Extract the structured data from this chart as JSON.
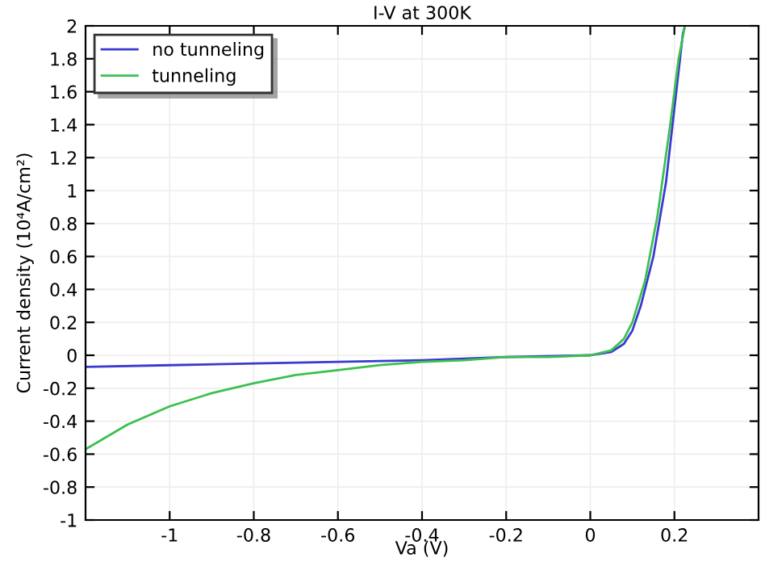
{
  "chart_data": {
    "type": "line",
    "title": "I-V at 300K",
    "xlabel": "Va (V)",
    "ylabel": "Current density (10⁴A/cm²)",
    "xlim": [
      -1.2,
      0.4
    ],
    "ylim": [
      -1,
      2
    ],
    "xticks": [
      -1,
      -0.8,
      -0.6,
      -0.4,
      -0.2,
      0,
      0.2
    ],
    "yticks": [
      -1,
      -0.8,
      -0.6,
      -0.4,
      -0.2,
      0,
      0.2,
      0.4,
      0.6,
      0.8,
      1,
      1.2,
      1.4,
      1.6,
      1.8,
      2
    ],
    "grid": true,
    "legend": "top left",
    "line_style": "solid",
    "marker": "none",
    "series": [
      {
        "name": "no tunneling",
        "color": "#3a3ad0",
        "x": [
          -1.2,
          -1.0,
          -0.8,
          -0.6,
          -0.4,
          -0.2,
          0,
          0.05,
          0.08,
          0.1,
          0.12,
          0.15,
          0.18,
          0.2,
          0.22,
          0.225
        ],
        "values": [
          -0.07,
          -0.06,
          -0.05,
          -0.04,
          -0.03,
          -0.01,
          0,
          0.02,
          0.07,
          0.15,
          0.3,
          0.6,
          1.05,
          1.5,
          1.95,
          2.0
        ]
      },
      {
        "name": "tunneling",
        "color": "#3cc050",
        "x": [
          -1.2,
          -1.1,
          -1.0,
          -0.9,
          -0.8,
          -0.7,
          -0.6,
          -0.5,
          -0.4,
          -0.3,
          -0.2,
          -0.1,
          0,
          0.05,
          0.08,
          0.1,
          0.13,
          0.16,
          0.19,
          0.21,
          0.225
        ],
        "values": [
          -0.57,
          -0.42,
          -0.31,
          -0.23,
          -0.17,
          -0.12,
          -0.09,
          -0.06,
          -0.04,
          -0.03,
          -0.01,
          -0.01,
          0,
          0.03,
          0.1,
          0.2,
          0.45,
          0.85,
          1.4,
          1.8,
          2.0
        ]
      }
    ]
  }
}
